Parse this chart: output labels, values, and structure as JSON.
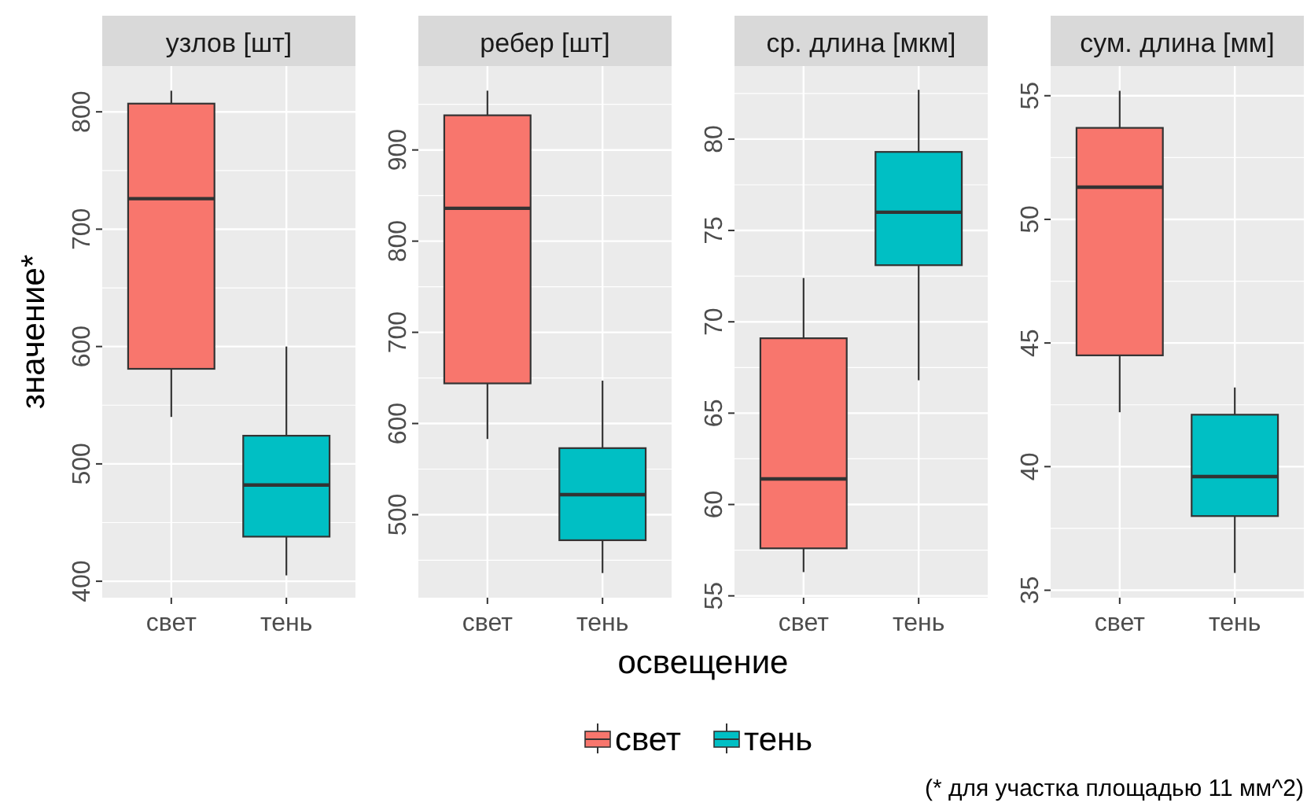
{
  "chart_data": [
    {
      "type": "box",
      "title": "узлов [шт]",
      "ylabel": "значение*",
      "categories": [
        "свет",
        "тень"
      ],
      "ylim": [
        386,
        839
      ],
      "yticks": [
        400,
        500,
        600,
        700,
        800
      ],
      "grid": true,
      "legend": "bottom",
      "series": [
        {
          "name": "свет",
          "color": "#f8766d",
          "boxes": [
            {
              "low": 540,
              "q1": 581,
              "median": 726,
              "q3": 807,
              "high": 818
            },
            null
          ]
        },
        {
          "name": "тень",
          "color": "#00bfc4",
          "boxes": [
            null,
            {
              "low": 405,
              "q1": 438,
              "median": 482,
              "q3": 524,
              "high": 600
            }
          ]
        }
      ]
    },
    {
      "type": "box",
      "title": "ребер [шт]",
      "xlabel": "освещение",
      "categories": [
        "свет",
        "тень"
      ],
      "ylim": [
        409,
        992
      ],
      "yticks": [
        500,
        600,
        700,
        800,
        900
      ],
      "grid": true,
      "series": [
        {
          "color": "#f8766d",
          "boxes": [
            {
              "low": 583,
              "q1": 644,
              "median": 836,
              "q3": 938,
              "high": 965
            },
            null
          ]
        },
        {
          "color": "#00bfc4",
          "boxes": [
            null,
            {
              "low": 436,
              "q1": 472,
              "median": 522,
              "q3": 573,
              "high": 647
            }
          ]
        }
      ]
    },
    {
      "type": "box",
      "title": "ср. длина [мкм]",
      "categories": [
        "свет",
        "тень"
      ],
      "ylim": [
        54.9,
        84
      ],
      "yticks": [
        55,
        60,
        65,
        70,
        75,
        80
      ],
      "grid": true,
      "series": [
        {
          "color": "#f8766d",
          "boxes": [
            {
              "low": 56.3,
              "q1": 57.6,
              "median": 61.4,
              "q3": 69.1,
              "high": 72.4
            },
            null
          ]
        },
        {
          "color": "#00bfc4",
          "boxes": [
            null,
            {
              "low": 66.8,
              "q1": 73.1,
              "median": 76.0,
              "q3": 79.3,
              "high": 82.7
            }
          ]
        }
      ]
    },
    {
      "type": "box",
      "title": "сум. длина [мм]",
      "categories": [
        "свет",
        "тень"
      ],
      "ylim": [
        34.7,
        56.2
      ],
      "yticks": [
        35,
        40,
        45,
        50,
        55
      ],
      "grid": true,
      "annotations": [
        "(* для участка площадью 11 мм^2)"
      ],
      "series": [
        {
          "color": "#f8766d",
          "boxes": [
            {
              "low": 42.2,
              "q1": 44.5,
              "median": 51.3,
              "q3": 53.7,
              "high": 55.2
            },
            null
          ]
        },
        {
          "color": "#00bfc4",
          "boxes": [
            null,
            {
              "low": 35.7,
              "q1": 38.0,
              "median": 39.6,
              "q3": 42.1,
              "high": 43.2
            }
          ]
        }
      ]
    }
  ]
}
